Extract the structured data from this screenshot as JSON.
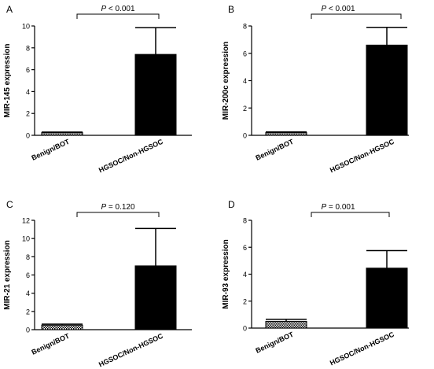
{
  "chart_data": [
    {
      "type": "bar",
      "panel": "A",
      "categories": [
        "Benign/BOT",
        "HGSOC/Non-HGSOC"
      ],
      "values": [
        0.25,
        7.4
      ],
      "errors": [
        0.05,
        2.45
      ],
      "ylabel": "MIR-145 expression",
      "ylim": [
        0,
        10
      ],
      "yticks": [
        0,
        2,
        4,
        6,
        8,
        10
      ],
      "p_prefix": "P",
      "p_text": " < 0.001",
      "bar_styles": [
        "hatched",
        "solid"
      ],
      "grid": false
    },
    {
      "type": "bar",
      "panel": "B",
      "categories": [
        "Benign/BOT",
        "HGSOC/Non-HGSOC"
      ],
      "values": [
        0.2,
        6.6
      ],
      "errors": [
        0.05,
        1.3
      ],
      "ylabel": "MIR-200c expression",
      "ylim": [
        0,
        8
      ],
      "yticks": [
        0,
        2,
        4,
        6,
        8
      ],
      "p_prefix": "P",
      "p_text": " < 0.001",
      "bar_styles": [
        "hatched",
        "solid"
      ],
      "grid": false
    },
    {
      "type": "bar",
      "panel": "C",
      "categories": [
        "Benign/BOT",
        "HGSOC/Non-HGSOC"
      ],
      "values": [
        0.5,
        7.0
      ],
      "errors": [
        0.1,
        4.1
      ],
      "ylabel": "MIR-21 expression",
      "ylim": [
        0,
        12
      ],
      "yticks": [
        0,
        2,
        4,
        6,
        8,
        10,
        12
      ],
      "p_prefix": "P",
      "p_text": " = 0.120",
      "bar_styles": [
        "hatched",
        "solid"
      ],
      "grid": false
    },
    {
      "type": "bar",
      "panel": "D",
      "categories": [
        "Benign/BOT",
        "HGSOC/Non-HGSOC"
      ],
      "values": [
        0.5,
        4.45
      ],
      "errors": [
        0.15,
        1.3
      ],
      "ylabel": "MIR-93 expression",
      "ylim": [
        0,
        8
      ],
      "yticks": [
        0,
        2,
        4,
        6,
        8
      ],
      "p_prefix": "P",
      "p_text": " = 0.001",
      "bar_styles": [
        "hatched",
        "solid"
      ],
      "grid": false
    }
  ],
  "colors": {
    "solid_bar": "#000000",
    "hatch_fg": "#000000",
    "hatch_bg": "#ffffff"
  }
}
